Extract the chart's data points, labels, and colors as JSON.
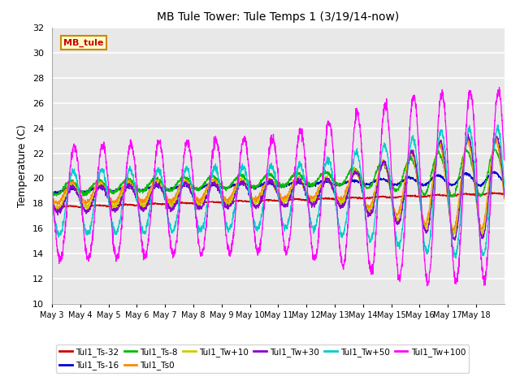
{
  "title": "MB Tule Tower: Tule Temps 1 (3/19/14-now)",
  "ylabel": "Temperature (C)",
  "ylim": [
    10,
    32
  ],
  "yticks": [
    10,
    12,
    14,
    16,
    18,
    20,
    22,
    24,
    26,
    28,
    30,
    32
  ],
  "plot_bg_color": "#e8e8e8",
  "series": [
    {
      "label": "Tul1_Ts-32",
      "color": "#cc0000"
    },
    {
      "label": "Tul1_Ts-16",
      "color": "#0000cc"
    },
    {
      "label": "Tul1_Ts-8",
      "color": "#00bb00"
    },
    {
      "label": "Tul1_Ts0",
      "color": "#ff8800"
    },
    {
      "label": "Tul1_Tw+10",
      "color": "#cccc00"
    },
    {
      "label": "Tul1_Tw+30",
      "color": "#8800cc"
    },
    {
      "label": "Tul1_Tw+50",
      "color": "#00cccc"
    },
    {
      "label": "Tul1_Tw+100",
      "color": "#ff00ff"
    }
  ],
  "x_tick_labels": [
    "May 3",
    "May 4",
    "May 5",
    "May 6",
    "May 7",
    "May 8",
    "May 9",
    "May 10",
    "May 11",
    "May 12",
    "May 13",
    "May 14",
    "May 15",
    "May 16",
    "May 17",
    "May 18"
  ],
  "legend_box_facecolor": "#ffffcc",
  "legend_box_edge": "#cc8800",
  "legend_label": "MB_tule",
  "legend_label_color": "#cc0000"
}
